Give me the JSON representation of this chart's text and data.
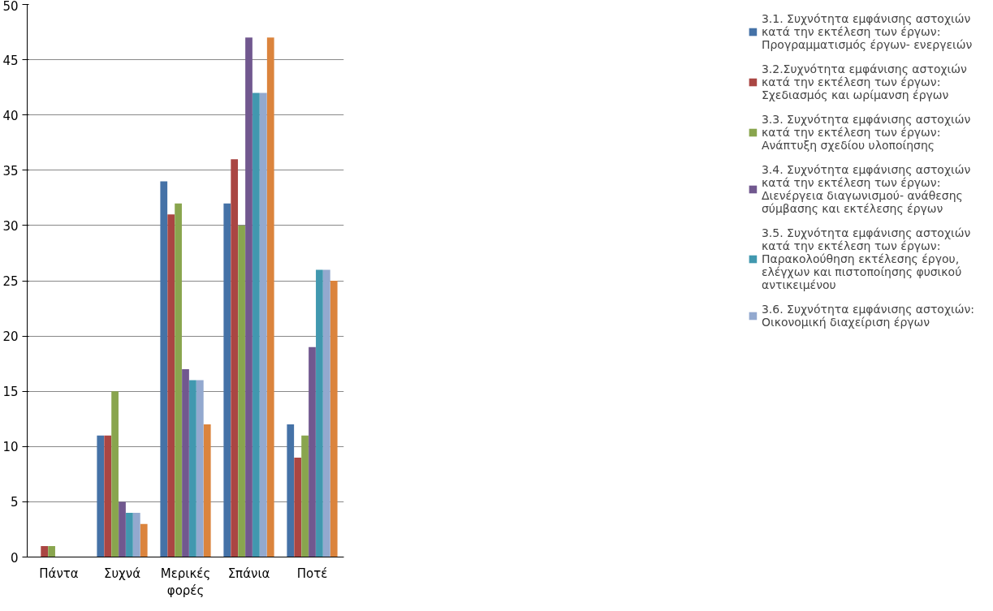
{
  "chart_data": {
    "type": "bar",
    "categories": [
      "Πάντα",
      "Συχνά",
      "Μερικές φορές",
      "Σπάνια",
      "Ποτέ"
    ],
    "series": [
      {
        "name": "3.1. Συχνότητα εμφάνισης αστοχιών κατά την εκτέλεση των έργων: Προγραμματισμός έργων- ενεργειών",
        "color": "#4572a7",
        "values": [
          0,
          11,
          34,
          32,
          12
        ]
      },
      {
        "name": "3.2.Συχνότητα εμφάνισης αστοχιών κατά την εκτέλεση των έργων: Σχεδιασμός και ωρίμανση έργων",
        "color": "#aa4643",
        "values": [
          1,
          11,
          31,
          36,
          9
        ]
      },
      {
        "name": "3.3. Συχνότητα εμφάνισης αστοχιών κατά την εκτέλεση των έργων: Ανάπτυξη σχεδίου υλοποίησης",
        "color": "#89a54e",
        "values": [
          1,
          15,
          32,
          30,
          11
        ]
      },
      {
        "name": "3.4. Συχνότητα εμφάνισης αστοχιών κατά την εκτέλεση των έργων: Διενέργεια διαγωνισμού- ανάθεσης σύμβασης και εκτέλεσης έργων",
        "color": "#71588f",
        "values": [
          0,
          5,
          17,
          47,
          19
        ]
      },
      {
        "name": "3.5. Συχνότητα εμφάνισης αστοχιών κατά την εκτέλεση των έργων: Παρακολούθηση εκτέλεσης έργου, ελέγχων και πιστοποίησης φυσικού αντικειμένου",
        "color": "#4198af",
        "values": [
          0,
          4,
          16,
          42,
          26
        ]
      },
      {
        "name": "3.6. Συχνότητα εμφάνισης αστοχιών: Οικονομική διαχείριση έργων",
        "color": "#93a9cf",
        "values": [
          0,
          4,
          16,
          42,
          26
        ]
      },
      {
        "color": "#db843d",
        "values": [
          0,
          3,
          12,
          47,
          25
        ]
      }
    ],
    "ylim": [
      0,
      50
    ],
    "yticks": [
      0,
      5,
      10,
      15,
      20,
      25,
      30,
      35,
      40,
      45,
      50
    ],
    "grid": "y",
    "legend": "right"
  }
}
